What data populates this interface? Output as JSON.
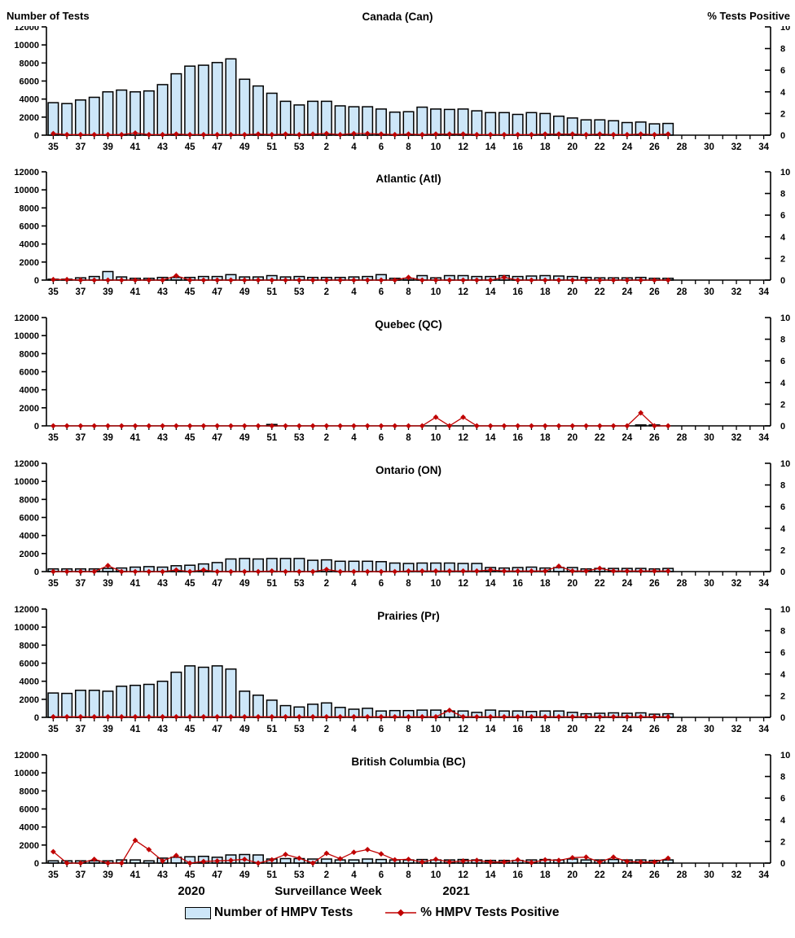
{
  "axis_headers": {
    "left": "Number of Tests",
    "right": "% Tests Positive"
  },
  "footer": {
    "year_left": "2020",
    "xlabel": "Surveillance Week",
    "year_right": "2021"
  },
  "legend": {
    "bars_label": "Number of HMPV Tests",
    "line_label": "% HMPV Tests Positive"
  },
  "colors": {
    "bar_fill": "#CDE6F8",
    "bar_stroke": "#000000",
    "line_color": "#C00000",
    "axis_color": "#000000",
    "background": "#FFFFFF"
  },
  "chart_data": {
    "type": "bar+line-small-multiples",
    "xlabel": "Surveillance Week",
    "ylabel_left": "Number of Tests",
    "ylabel_right": "% Tests Positive",
    "ylim_left": [
      0,
      12000
    ],
    "ylim_right": [
      0,
      10
    ],
    "y_ticks_left": [
      0,
      2000,
      4000,
      6000,
      8000,
      10000,
      12000
    ],
    "y_ticks_right": [
      0,
      2,
      4,
      6,
      8,
      10
    ],
    "legend_position": "bottom",
    "grid": false,
    "axis_weeks_full": [
      35,
      36,
      37,
      38,
      39,
      40,
      41,
      42,
      43,
      44,
      45,
      46,
      47,
      48,
      49,
      50,
      51,
      52,
      53,
      1,
      2,
      3,
      4,
      5,
      6,
      7,
      8,
      9,
      10,
      11,
      12,
      13,
      14,
      15,
      16,
      17,
      18,
      19,
      20,
      21,
      22,
      23,
      24,
      25,
      26,
      27,
      28,
      29,
      30,
      31,
      32,
      33,
      34
    ],
    "x": [
      35,
      36,
      37,
      38,
      39,
      40,
      41,
      42,
      43,
      44,
      45,
      46,
      47,
      48,
      49,
      50,
      51,
      52,
      53,
      1,
      2,
      3,
      4,
      5,
      6,
      7,
      8,
      9,
      10,
      11,
      12,
      13,
      14,
      15,
      16,
      17,
      18,
      19,
      20,
      21,
      22,
      23,
      24,
      25,
      26,
      27
    ],
    "x_tick_labels": [
      35,
      37,
      39,
      41,
      43,
      45,
      47,
      49,
      51,
      53,
      2,
      4,
      6,
      8,
      10,
      12,
      14,
      16,
      18,
      20,
      22,
      24,
      26,
      28,
      30,
      32,
      34
    ],
    "year_left": "2020",
    "year_right": "2021",
    "panels": [
      {
        "key": "canada",
        "title": "Canada (Can)",
        "tests": [
          3600,
          3500,
          3900,
          4200,
          4800,
          5000,
          4800,
          4900,
          5600,
          6800,
          7650,
          7750,
          8050,
          8450,
          6200,
          5450,
          4650,
          3750,
          3350,
          3750,
          3750,
          3250,
          3150,
          3150,
          2900,
          2550,
          2600,
          3100,
          2900,
          2850,
          2900,
          2700,
          2500,
          2500,
          2300,
          2500,
          2400,
          2100,
          1900,
          1700,
          1700,
          1600,
          1400,
          1450,
          1250,
          1300
        ],
        "pct_positive": [
          0.15,
          0.05,
          0.05,
          0.05,
          0.05,
          0.05,
          0.2,
          0.05,
          0.05,
          0.1,
          0.05,
          0.05,
          0.05,
          0.05,
          0.05,
          0.1,
          0.05,
          0.1,
          0.05,
          0.1,
          0.15,
          0.05,
          0.15,
          0.15,
          0.1,
          0.05,
          0.1,
          0.05,
          0.1,
          0.1,
          0.1,
          0.05,
          0.05,
          0.05,
          0.05,
          0.05,
          0.1,
          0.1,
          0.1,
          0.05,
          0.1,
          0.05,
          0.05,
          0.1,
          0.05,
          0.1
        ]
      },
      {
        "key": "atlantic",
        "title": "Atlantic (Atl)",
        "tests": [
          100,
          100,
          250,
          400,
          950,
          350,
          200,
          200,
          300,
          300,
          300,
          400,
          400,
          600,
          350,
          350,
          500,
          350,
          400,
          300,
          300,
          300,
          350,
          400,
          600,
          200,
          200,
          500,
          250,
          500,
          500,
          400,
          400,
          500,
          400,
          450,
          500,
          450,
          400,
          300,
          250,
          250,
          250,
          300,
          200,
          200
        ],
        "pct_positive": [
          0.05,
          0.05,
          0,
          0,
          0,
          0,
          0,
          0,
          0,
          0.4,
          0,
          0,
          0,
          0,
          0,
          0,
          0,
          0,
          0,
          0,
          0,
          0,
          0,
          0,
          0,
          0,
          0.25,
          0,
          0,
          0,
          0,
          0,
          0,
          0.25,
          0,
          0,
          0,
          0,
          0,
          0,
          0,
          0,
          0,
          0,
          0,
          0
        ]
      },
      {
        "key": "quebec",
        "title": "Quebec (QC)",
        "tests": [
          0,
          0,
          0,
          0,
          0,
          0,
          0,
          0,
          0,
          0,
          0,
          0,
          0,
          0,
          0,
          0,
          150,
          0,
          0,
          0,
          0,
          0,
          0,
          0,
          0,
          0,
          0,
          0,
          0,
          0,
          0,
          0,
          0,
          0,
          0,
          0,
          0,
          0,
          0,
          0,
          0,
          0,
          0,
          100,
          100,
          0
        ],
        "pct_positive": [
          0,
          0,
          0,
          0,
          0,
          0,
          0,
          0,
          0,
          0,
          0,
          0,
          0,
          0,
          0,
          0,
          0,
          0,
          0,
          0,
          0,
          0,
          0,
          0,
          0,
          0,
          0,
          0,
          0.8,
          0,
          0.8,
          0,
          0,
          0,
          0,
          0,
          0,
          0,
          0,
          0,
          0,
          0,
          0,
          1.2,
          0,
          0
        ]
      },
      {
        "key": "ontario",
        "title": "Ontario (ON)",
        "tests": [
          300,
          300,
          300,
          300,
          350,
          400,
          500,
          550,
          500,
          650,
          700,
          850,
          1000,
          1400,
          1450,
          1400,
          1450,
          1450,
          1450,
          1250,
          1300,
          1150,
          1150,
          1150,
          1100,
          950,
          900,
          950,
          950,
          950,
          900,
          900,
          450,
          400,
          450,
          500,
          400,
          450,
          450,
          300,
          350,
          350,
          350,
          350,
          300,
          350
        ],
        "pct_positive": [
          0,
          0,
          0,
          0,
          0.55,
          0,
          0,
          0,
          0,
          0.15,
          0,
          0.15,
          0,
          0,
          0,
          0,
          0.05,
          0,
          0,
          0,
          0.2,
          0,
          0,
          0,
          0,
          0,
          0.05,
          0.05,
          0.05,
          0.05,
          0.05,
          0.05,
          0.15,
          0.05,
          0.05,
          0.05,
          0.05,
          0.5,
          0.05,
          0.05,
          0.3,
          0.05,
          0.05,
          0.05,
          0.05,
          0.05
        ]
      },
      {
        "key": "prairies",
        "title": "Prairies (Pr)",
        "tests": [
          2700,
          2650,
          3000,
          3000,
          2900,
          3450,
          3550,
          3650,
          4000,
          5000,
          5700,
          5550,
          5700,
          5350,
          2900,
          2450,
          1900,
          1300,
          1150,
          1450,
          1600,
          1100,
          900,
          1000,
          700,
          750,
          750,
          800,
          800,
          700,
          700,
          550,
          800,
          700,
          700,
          650,
          700,
          700,
          550,
          400,
          450,
          500,
          450,
          500,
          350,
          400
        ],
        "pct_positive": [
          0.05,
          0.05,
          0.05,
          0.05,
          0.05,
          0.05,
          0.05,
          0.05,
          0.05,
          0.05,
          0.05,
          0.05,
          0.05,
          0.05,
          0.05,
          0.05,
          0.05,
          0.05,
          0.05,
          0.05,
          0.05,
          0.05,
          0.05,
          0.05,
          0.05,
          0.05,
          0.05,
          0.05,
          0.05,
          0.65,
          0.05,
          0.05,
          0.05,
          0.05,
          0.05,
          0.05,
          0.05,
          0.05,
          0.05,
          0.05,
          0.05,
          0.05,
          0.05,
          0.05,
          0.05,
          0.05
        ]
      },
      {
        "key": "british-columbia",
        "title": "British Columbia (BC)",
        "tests": [
          250,
          250,
          250,
          250,
          250,
          350,
          350,
          250,
          550,
          650,
          700,
          750,
          650,
          900,
          950,
          900,
          450,
          500,
          500,
          450,
          450,
          350,
          350,
          450,
          400,
          350,
          350,
          400,
          350,
          350,
          400,
          350,
          300,
          300,
          300,
          350,
          400,
          350,
          450,
          350,
          350,
          400,
          350,
          350,
          300,
          350
        ],
        "pct_positive": [
          1.05,
          0,
          0,
          0.35,
          0,
          0,
          2.1,
          1.25,
          0.2,
          0.7,
          0,
          0.15,
          0.2,
          0.25,
          0.35,
          0,
          0.3,
          0.8,
          0.45,
          0,
          0.9,
          0.4,
          1.0,
          1.25,
          0.85,
          0.3,
          0.35,
          0.1,
          0.35,
          0.1,
          0.2,
          0.25,
          0.1,
          0.1,
          0.3,
          0.05,
          0.3,
          0.25,
          0.5,
          0.55,
          0.1,
          0.55,
          0.15,
          0.1,
          0.1,
          0.45
        ]
      }
    ]
  }
}
